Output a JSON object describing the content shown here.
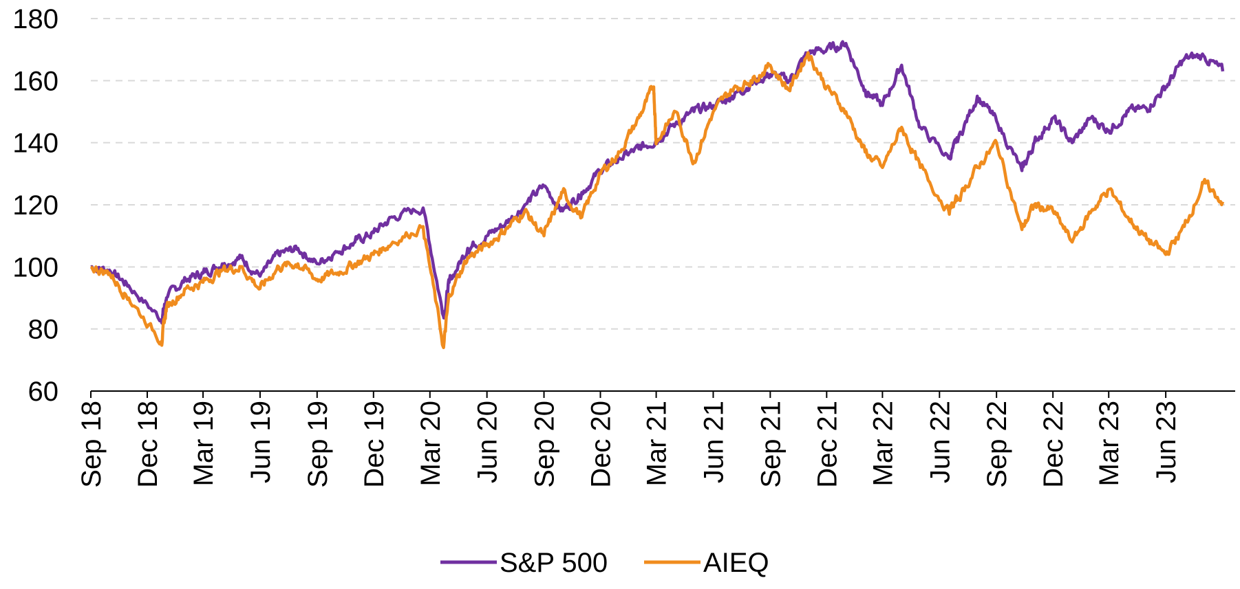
{
  "chart_data": {
    "type": "line",
    "title": "",
    "xlabel": "",
    "ylabel": "",
    "ylim": [
      60,
      180
    ],
    "yticks": [
      60,
      80,
      100,
      120,
      140,
      160,
      180
    ],
    "grid": "horizontal-dashed",
    "legend_position": "bottom",
    "x_range": [
      "2018-09",
      "2023-09"
    ],
    "xtick_labels": [
      {
        "date": "2018-09",
        "label": "Sep 18"
      },
      {
        "date": "2018-12",
        "label": "Dec 18"
      },
      {
        "date": "2019-03",
        "label": "Mar 19"
      },
      {
        "date": "2019-06",
        "label": "Jun 19"
      },
      {
        "date": "2019-09",
        "label": "Sep 19"
      },
      {
        "date": "2019-12",
        "label": "Dec 19"
      },
      {
        "date": "2020-03",
        "label": "Mar 20"
      },
      {
        "date": "2020-06",
        "label": "Jun 20"
      },
      {
        "date": "2020-09",
        "label": "Sep 20"
      },
      {
        "date": "2020-12",
        "label": "Dec 20"
      },
      {
        "date": "2021-03",
        "label": "Mar 21"
      },
      {
        "date": "2021-06",
        "label": "Jun 21"
      },
      {
        "date": "2021-09",
        "label": "Sep 21"
      },
      {
        "date": "2021-12",
        "label": "Dec 21"
      },
      {
        "date": "2022-03",
        "label": "Mar 22"
      },
      {
        "date": "2022-06",
        "label": "Jun 22"
      },
      {
        "date": "2022-09",
        "label": "Sep 22"
      },
      {
        "date": "2022-12",
        "label": "Dec 22"
      },
      {
        "date": "2023-03",
        "label": "Mar 23"
      },
      {
        "date": "2023-06",
        "label": "Jun 23"
      }
    ],
    "series": [
      {
        "name": "S&P 500",
        "color": "#7030A0",
        "points": [
          [
            "2018-09",
            100
          ],
          [
            "2018-10",
            99
          ],
          [
            "2018-11",
            94
          ],
          [
            "2018-12-24",
            83
          ],
          [
            "2019-01",
            90
          ],
          [
            "2019-02",
            96
          ],
          [
            "2019-03",
            98
          ],
          [
            "2019-04",
            101
          ],
          [
            "2019-05",
            103
          ],
          [
            "2019-06",
            97
          ],
          [
            "2019-07",
            104
          ],
          [
            "2019-08",
            106
          ],
          [
            "2019-09",
            101
          ],
          [
            "2019-10",
            105
          ],
          [
            "2019-11",
            108
          ],
          [
            "2019-12",
            111
          ],
          [
            "2020-01",
            116
          ],
          [
            "2020-02-19",
            119
          ],
          [
            "2020-03-23",
            84
          ],
          [
            "2020-04",
            95
          ],
          [
            "2020-05",
            106
          ],
          [
            "2020-06",
            110
          ],
          [
            "2020-07",
            114
          ],
          [
            "2020-08",
            120
          ],
          [
            "2020-09",
            126
          ],
          [
            "2020-10",
            118
          ],
          [
            "2020-11",
            124
          ],
          [
            "2020-12",
            131
          ],
          [
            "2021-01",
            135
          ],
          [
            "2021-02",
            138
          ],
          [
            "2021-03",
            141
          ],
          [
            "2021-04",
            146
          ],
          [
            "2021-05",
            150
          ],
          [
            "2021-06",
            152
          ],
          [
            "2021-07",
            155
          ],
          [
            "2021-08",
            159
          ],
          [
            "2021-09",
            162
          ],
          [
            "2021-10",
            160
          ],
          [
            "2021-11",
            169
          ],
          [
            "2021-12",
            170
          ],
          [
            "2022-01",
            172
          ],
          [
            "2022-02",
            157
          ],
          [
            "2022-03",
            152
          ],
          [
            "2022-04",
            165
          ],
          [
            "2022-05",
            145
          ],
          [
            "2022-06-16",
            135
          ],
          [
            "2022-07",
            141
          ],
          [
            "2022-08",
            155
          ],
          [
            "2022-09",
            147
          ],
          [
            "2022-10-12",
            131
          ],
          [
            "2022-11",
            140
          ],
          [
            "2022-12",
            148
          ],
          [
            "2023-01",
            140
          ],
          [
            "2023-02",
            148
          ],
          [
            "2023-03",
            144
          ],
          [
            "2023-04",
            150
          ],
          [
            "2023-05",
            151
          ],
          [
            "2023-06",
            158
          ],
          [
            "2023-07",
            167
          ],
          [
            "2023-08",
            168
          ],
          [
            "2023-09",
            163
          ]
        ]
      },
      {
        "name": "AIEQ",
        "color": "#F08C1E",
        "points": [
          [
            "2018-09",
            100
          ],
          [
            "2018-10",
            98
          ],
          [
            "2018-11",
            90
          ],
          [
            "2018-12-24",
            76
          ],
          [
            "2019-01",
            87
          ],
          [
            "2019-02",
            93
          ],
          [
            "2019-03",
            95
          ],
          [
            "2019-04",
            99
          ],
          [
            "2019-05",
            100
          ],
          [
            "2019-06",
            93
          ],
          [
            "2019-07",
            100
          ],
          [
            "2019-08",
            101
          ],
          [
            "2019-09",
            96
          ],
          [
            "2019-10",
            98
          ],
          [
            "2019-11",
            101
          ],
          [
            "2019-12",
            104
          ],
          [
            "2020-01",
            108
          ],
          [
            "2020-02-19",
            113
          ],
          [
            "2020-03-23",
            74
          ],
          [
            "2020-04",
            91
          ],
          [
            "2020-05",
            103
          ],
          [
            "2020-06",
            107
          ],
          [
            "2020-07",
            112
          ],
          [
            "2020-08",
            118
          ],
          [
            "2020-09",
            110
          ],
          [
            "2020-10",
            124
          ],
          [
            "2020-11",
            116
          ],
          [
            "2020-12",
            130
          ],
          [
            "2021-01",
            137
          ],
          [
            "2021-02",
            148
          ],
          [
            "2021-02-25",
            158
          ],
          [
            "2021-03",
            140
          ],
          [
            "2021-04",
            150
          ],
          [
            "2021-05",
            134
          ],
          [
            "2021-06",
            150
          ],
          [
            "2021-07",
            157
          ],
          [
            "2021-08",
            160
          ],
          [
            "2021-09",
            165
          ],
          [
            "2021-10",
            157
          ],
          [
            "2021-11",
            169
          ],
          [
            "2021-12",
            158
          ],
          [
            "2022-01",
            150
          ],
          [
            "2022-02",
            137
          ],
          [
            "2022-03",
            132
          ],
          [
            "2022-04",
            145
          ],
          [
            "2022-05",
            132
          ],
          [
            "2022-06-16",
            118
          ],
          [
            "2022-07",
            122
          ],
          [
            "2022-08",
            132
          ],
          [
            "2022-09",
            140
          ],
          [
            "2022-10-12",
            112
          ],
          [
            "2022-11",
            120
          ],
          [
            "2022-12",
            118
          ],
          [
            "2023-01",
            108
          ],
          [
            "2023-02",
            118
          ],
          [
            "2023-03",
            125
          ],
          [
            "2023-04",
            116
          ],
          [
            "2023-05",
            109
          ],
          [
            "2023-06",
            104
          ],
          [
            "2023-07",
            113
          ],
          [
            "2023-08",
            127
          ],
          [
            "2023-09",
            121
          ]
        ]
      }
    ]
  }
}
